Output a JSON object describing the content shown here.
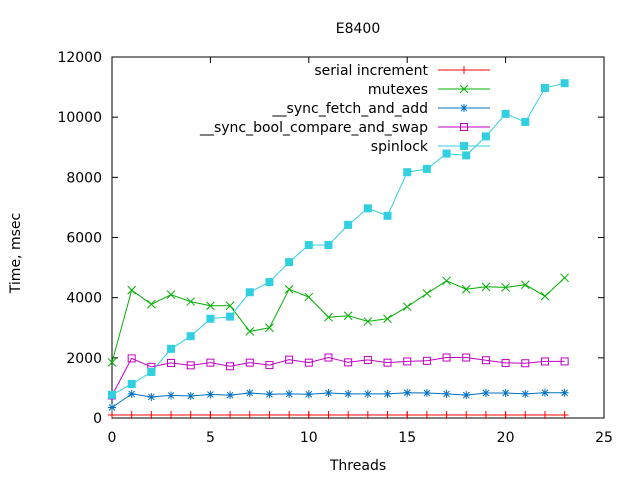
{
  "chart_data": {
    "type": "line",
    "title": "E8400",
    "xlabel": "Threads",
    "ylabel": "Time, msec",
    "xlim": [
      0,
      25
    ],
    "ylim": [
      0,
      12000
    ],
    "xticks": [
      0,
      5,
      10,
      15,
      20,
      25
    ],
    "yticks": [
      0,
      2000,
      4000,
      6000,
      8000,
      10000,
      12000
    ],
    "xtick_labels": [
      "0",
      "5",
      "10",
      "15",
      "20",
      "25"
    ],
    "ytick_labels": [
      "0",
      "2000",
      "4000",
      "6000",
      "8000",
      "10000",
      "12000"
    ],
    "grid": false,
    "legend_position": "top-right",
    "x": [
      0,
      1,
      2,
      3,
      4,
      5,
      6,
      7,
      8,
      9,
      10,
      11,
      12,
      13,
      14,
      15,
      16,
      17,
      18,
      19,
      20,
      21,
      22,
      23
    ],
    "series": [
      {
        "name": "serial increment",
        "color": "#ff0000",
        "marker": "plus",
        "values": [
          100,
          100,
          100,
          100,
          100,
          100,
          100,
          100,
          100,
          100,
          100,
          100,
          100,
          100,
          100,
          100,
          100,
          100,
          100,
          100,
          100,
          100,
          100,
          100
        ]
      },
      {
        "name": "mutexes",
        "color": "#00b000",
        "marker": "cross",
        "values": [
          1850,
          4250,
          3780,
          4100,
          3870,
          3730,
          3730,
          2880,
          3000,
          4280,
          4020,
          3350,
          3400,
          3210,
          3300,
          3700,
          4140,
          4560,
          4280,
          4360,
          4340,
          4430,
          4050,
          4660
        ]
      },
      {
        "name": "__sync_fetch_and_add",
        "color": "#0070c0",
        "marker": "star",
        "values": [
          350,
          800,
          700,
          750,
          730,
          780,
          760,
          830,
          790,
          800,
          790,
          830,
          800,
          800,
          800,
          840,
          830,
          800,
          760,
          830,
          830,
          800,
          840,
          840
        ]
      },
      {
        "name": "__sync_bool_compare_and_swap",
        "color": "#c000c0",
        "marker": "square-open",
        "values": [
          750,
          1980,
          1700,
          1830,
          1750,
          1840,
          1720,
          1840,
          1760,
          1940,
          1840,
          2010,
          1850,
          1930,
          1840,
          1880,
          1900,
          2010,
          2010,
          1920,
          1830,
          1820,
          1880,
          1880
        ]
      },
      {
        "name": "spinlock",
        "color": "#30d0e0",
        "marker": "square-filled",
        "values": [
          770,
          1130,
          1530,
          2300,
          2720,
          3300,
          3370,
          4180,
          4520,
          5180,
          5750,
          5750,
          6420,
          6970,
          6720,
          8170,
          8280,
          8790,
          8730,
          9360,
          10110,
          9840,
          10970,
          11130
        ]
      }
    ]
  }
}
